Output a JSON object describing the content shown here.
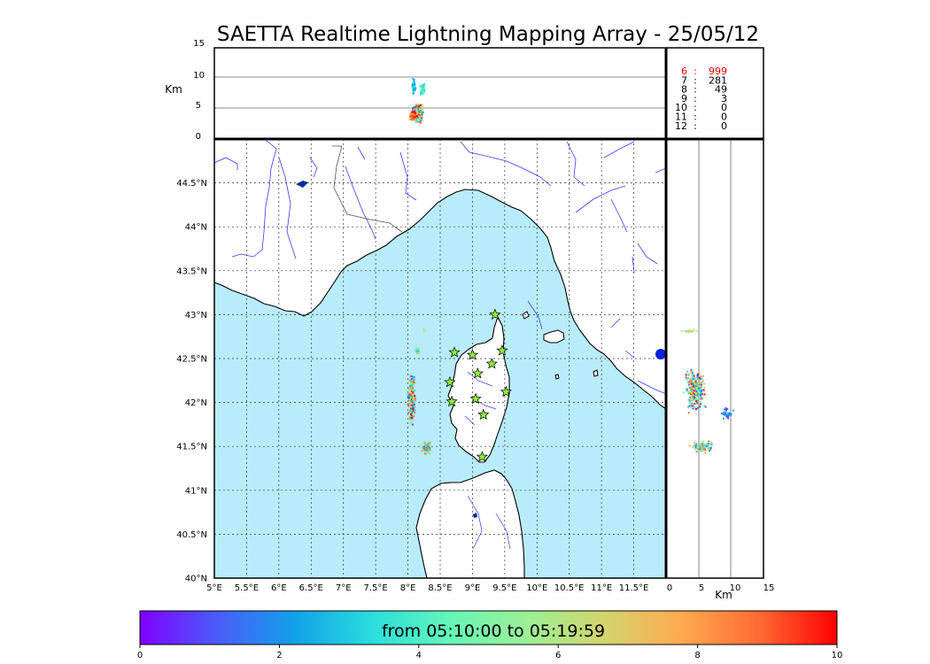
{
  "title": "SAETTA Realtime Lightning Mapping Array - 25/05/12",
  "altitude_panel": {
    "unit": "Km",
    "y_ticks": [
      "15",
      "10",
      "5",
      "0"
    ],
    "reference_lines_km": [
      5,
      10
    ]
  },
  "side_panel": {
    "unit": "Km",
    "x_ticks": [
      "0",
      "5",
      "10",
      "15"
    ]
  },
  "station_counts": [
    {
      "stations": "6",
      "sep": ":",
      "count": "999",
      "color": "#ff0000"
    },
    {
      "stations": "7",
      "sep": ":",
      "count": "281",
      "color": "#000000"
    },
    {
      "stations": "8",
      "sep": ":",
      "count": "49",
      "color": "#000000"
    },
    {
      "stations": "9",
      "sep": ":",
      "count": "3",
      "color": "#000000"
    },
    {
      "stations": "10",
      "sep": ":",
      "count": "0",
      "color": "#000000"
    },
    {
      "stations": "11",
      "sep": ":",
      "count": "0",
      "color": "#000000"
    },
    {
      "stations": "12",
      "sep": ":",
      "count": "0",
      "color": "#000000"
    }
  ],
  "map": {
    "lon_ticks": [
      "5°E",
      "5.5°E",
      "6°E",
      "6.5°E",
      "7°E",
      "7.5°E",
      "8°E",
      "8.5°E",
      "9°E",
      "9.5°E",
      "10°E",
      "10.5°E",
      "11°E",
      "11.5°E"
    ],
    "lat_ticks": [
      "40°N",
      "40.5°N",
      "41°N",
      "41.5°N",
      "42°N",
      "42.5°N",
      "43°N",
      "43.5°N",
      "44°N",
      "44.5°N"
    ],
    "lon_range": [
      5,
      12
    ],
    "lat_range": [
      40,
      45
    ],
    "sea_color": "#b8ecfa",
    "land_color": "#ffffff",
    "river_color": "#3a3aff",
    "station_color": "#8ef03a"
  },
  "stations": [
    {
      "lon": 9.35,
      "lat": 43.0
    },
    {
      "lon": 8.72,
      "lat": 42.57
    },
    {
      "lon": 9.0,
      "lat": 42.54
    },
    {
      "lon": 9.46,
      "lat": 42.59
    },
    {
      "lon": 9.3,
      "lat": 42.44
    },
    {
      "lon": 9.08,
      "lat": 42.33
    },
    {
      "lon": 8.65,
      "lat": 42.23
    },
    {
      "lon": 9.52,
      "lat": 42.12
    },
    {
      "lon": 9.05,
      "lat": 42.04
    },
    {
      "lon": 8.68,
      "lat": 42.01
    },
    {
      "lon": 9.17,
      "lat": 41.86
    },
    {
      "lon": 9.15,
      "lat": 41.38
    }
  ],
  "colorbar": {
    "label": "from 05:10:00 to 05:19:59",
    "ticks": [
      "0",
      "2",
      "4",
      "6",
      "8",
      "10"
    ],
    "range": [
      0,
      10
    ],
    "colors": [
      "#8000ff",
      "#4a5cfa",
      "#12a1e9",
      "#2adddd",
      "#64f6b8",
      "#9cf095",
      "#d4d46c",
      "#ffa950",
      "#ff6a33",
      "#ff0000"
    ]
  }
}
